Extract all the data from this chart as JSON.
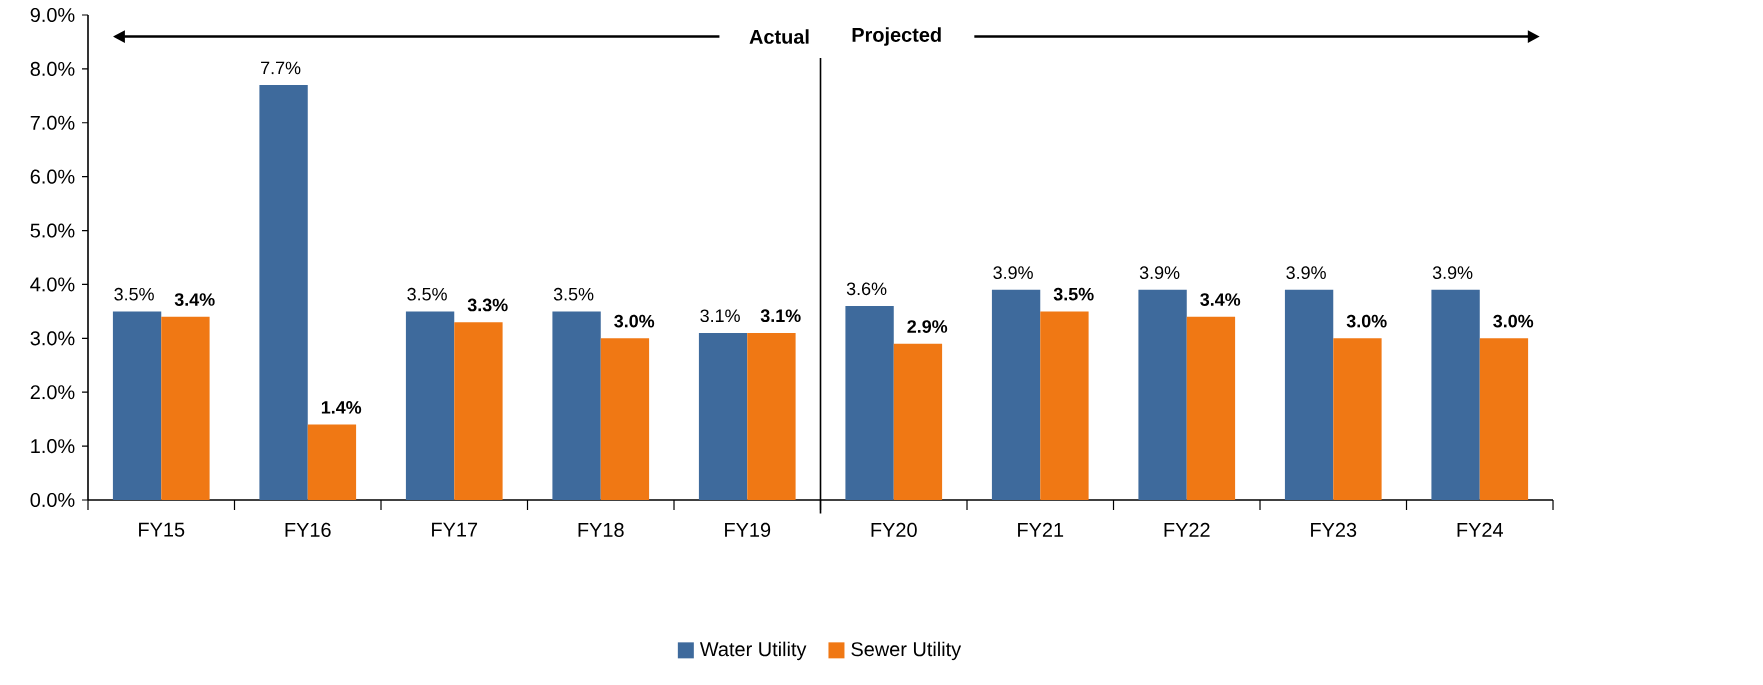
{
  "chart_data": {
    "type": "bar",
    "categories": [
      "FY15",
      "FY16",
      "FY17",
      "FY18",
      "FY19",
      "FY20",
      "FY21",
      "FY22",
      "FY23",
      "FY24"
    ],
    "series": [
      {
        "name": "Water Utility",
        "color": "#3e6a9c",
        "values": [
          3.5,
          7.7,
          3.5,
          3.5,
          3.1,
          3.6,
          3.9,
          3.9,
          3.9,
          3.9
        ],
        "value_labels": [
          "3.5%",
          "7.7%",
          "3.5%",
          "3.5%",
          "3.1%",
          "3.6%",
          "3.9%",
          "3.9%",
          "3.9%",
          "3.9%"
        ]
      },
      {
        "name": "Sewer Utility",
        "color": "#f07814",
        "values": [
          3.4,
          1.4,
          3.3,
          3.0,
          3.1,
          2.9,
          3.5,
          3.4,
          3.0,
          3.0
        ],
        "value_labels": [
          "3.4%",
          "1.4%",
          "3.3%",
          "3.0%",
          "3.1%",
          "2.9%",
          "3.5%",
          "3.4%",
          "3.0%",
          "3.0%"
        ]
      }
    ],
    "ylim": [
      0,
      9
    ],
    "yticks": [
      {
        "value": 0,
        "label": "0.0%"
      },
      {
        "value": 1,
        "label": "1.0%"
      },
      {
        "value": 2,
        "label": "2.0%"
      },
      {
        "value": 3,
        "label": "3.0%"
      },
      {
        "value": 4,
        "label": "4.0%"
      },
      {
        "value": 5,
        "label": "5.0%"
      },
      {
        "value": 6,
        "label": "6.0%"
      },
      {
        "value": 7,
        "label": "7.0%"
      },
      {
        "value": 8,
        "label": "8.0%"
      },
      {
        "value": 9,
        "label": "9.0%"
      }
    ],
    "annotations": [
      "Actual",
      "Projected"
    ],
    "grid": false,
    "legend": "bottom"
  }
}
